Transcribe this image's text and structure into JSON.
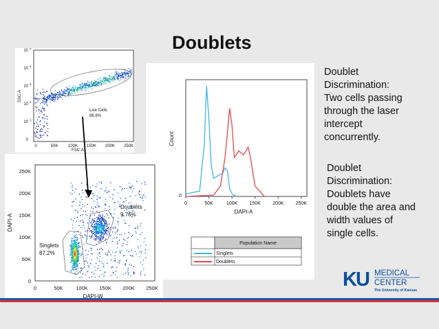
{
  "slide": {
    "title": "Doublets",
    "text_block_1": [
      "Doublet",
      "Discrimination:",
      "Two cells passing",
      "through the laser",
      "intercept",
      "concurrently."
    ],
    "text_block_2": [
      "Doublet",
      "Discrimination:",
      "Doublets have",
      "double the area and",
      "width values of",
      "single cells."
    ]
  },
  "plot_top": {
    "x_ticks": [
      "0",
      "50K",
      "100K",
      "150K",
      "200K",
      "250K"
    ],
    "x_label": "FSC-A",
    "y_ticks": [
      "0",
      "10",
      "10",
      "10",
      "10",
      "10"
    ],
    "y_exponents": [
      "",
      "1",
      "2",
      "3",
      "4",
      "5"
    ],
    "y_label": "SSC-A",
    "gate_label": "Live Cells",
    "gate_value": "86.6%"
  },
  "plot_left": {
    "x_ticks": [
      "0",
      "50K",
      "100K",
      "150K",
      "200K",
      "250K"
    ],
    "x_label": "DAPI-W",
    "y_ticks": [
      "0",
      "50K",
      "100K",
      "150K",
      "200K",
      "250K"
    ],
    "y_label": "DAPI-A",
    "gate1_label": "Singlets",
    "gate1_value": "87.2%",
    "gate2_label": "Doublets",
    "gate2_value": "9.76%"
  },
  "histogram": {
    "x_ticks": [
      "0",
      "50K",
      "100K",
      "150K",
      "200K",
      "250K"
    ],
    "x_label": "DAPI-A",
    "y_label": "Count",
    "y_tick": "0",
    "legend_header": "Population Name",
    "legend_items": [
      {
        "name": "Singlets",
        "color": "#3fb6e0"
      },
      {
        "name": "Doublets",
        "color": "#e0474f"
      }
    ]
  },
  "logo": {
    "letters": "KU",
    "line1": "MEDICAL",
    "line2": "CENTER",
    "tagline": "The University of Kansas"
  },
  "colors": {
    "background": "#e9e9ea",
    "ku_blue": "#0b4fa0",
    "stripe_blue": "#1f56a8",
    "stripe_red": "#d3343b"
  },
  "chart_data": [
    {
      "type": "scatter",
      "description_free": true,
      "xlabel": "FSC-A",
      "ylabel": "SSC-A",
      "x_ticks": [
        "0",
        "50K",
        "100K",
        "150K",
        "200K",
        "250K"
      ],
      "gate": {
        "name": "Live Cells",
        "percent": 86.6
      }
    },
    {
      "type": "scatter",
      "xlabel": "DAPI-W",
      "ylabel": "DAPI-A",
      "xlim": [
        0,
        262144
      ],
      "ylim": [
        0,
        262144
      ],
      "gates": [
        {
          "name": "Singlets",
          "percent": 87.2
        },
        {
          "name": "Doublets",
          "percent": 9.76
        }
      ]
    },
    {
      "type": "line",
      "xlabel": "DAPI-A",
      "ylabel": "Count",
      "xlim": [
        0,
        262144
      ],
      "series": [
        {
          "name": "Singlets",
          "x": [
            0,
            30000,
            40000,
            45000,
            50000,
            55000,
            60000,
            70000,
            80000,
            85000,
            90000,
            95000,
            100000,
            110000
          ],
          "y": [
            2,
            4,
            40,
            85,
            60,
            25,
            14,
            16,
            18,
            22,
            20,
            6,
            2,
            0
          ]
        },
        {
          "name": "Doublets",
          "x": [
            0,
            60000,
            75000,
            85000,
            95000,
            100000,
            105000,
            115000,
            125000,
            135000,
            140000,
            150000,
            170000
          ],
          "y": [
            0,
            1,
            8,
            30,
            68,
            55,
            30,
            35,
            32,
            38,
            30,
            8,
            0
          ]
        }
      ]
    }
  ]
}
